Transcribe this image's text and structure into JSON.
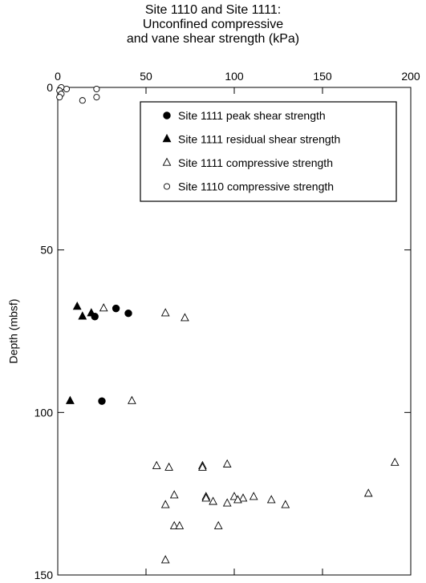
{
  "chart_data": {
    "type": "scatter",
    "title_lines": [
      "Site 1110 and Site 1111:",
      "Unconfined compressive",
      "and vane shear strength (kPa)"
    ],
    "xlabel": "",
    "ylabel": "Depth (mbsf)",
    "xlim": [
      0,
      200
    ],
    "ylim": [
      0,
      150
    ],
    "y_inverted": true,
    "x_axis_position": "top",
    "grid": false,
    "legend_placement": "top-right",
    "x_ticks": [
      0,
      50,
      100,
      150,
      200
    ],
    "y_ticks": [
      0,
      50,
      100,
      150
    ],
    "series": [
      {
        "name": "Site 1111 peak shear strength",
        "marker": "filled-circle",
        "points": [
          [
            33,
            68
          ],
          [
            40,
            69.5
          ],
          [
            21,
            70.5
          ],
          [
            25,
            96.5
          ]
        ]
      },
      {
        "name": "Site 1111 residual shear strength",
        "marker": "filled-triangle",
        "points": [
          [
            11,
            67.5
          ],
          [
            14,
            70.5
          ],
          [
            19,
            69.5
          ],
          [
            7,
            96.5
          ]
        ]
      },
      {
        "name": "Site 1111 compressive strength",
        "marker": "open-triangle",
        "points": [
          [
            26,
            68
          ],
          [
            61,
            69.5
          ],
          [
            72,
            71
          ],
          [
            42,
            96.5
          ],
          [
            56,
            116.5
          ],
          [
            63,
            117
          ],
          [
            82,
            116.5
          ],
          [
            82,
            117
          ],
          [
            96,
            116
          ],
          [
            191,
            115.5
          ],
          [
            176,
            125
          ],
          [
            66,
            125.5
          ],
          [
            84,
            126
          ],
          [
            84,
            126.5
          ],
          [
            100,
            126
          ],
          [
            105,
            126.5
          ],
          [
            111,
            126
          ],
          [
            61,
            128.5
          ],
          [
            88,
            127.5
          ],
          [
            96,
            128
          ],
          [
            102,
            127
          ],
          [
            121,
            127
          ],
          [
            129,
            128.5
          ],
          [
            66,
            135
          ],
          [
            69,
            135
          ],
          [
            91,
            135
          ],
          [
            61,
            145.5
          ]
        ]
      },
      {
        "name": "Site 1110 compressive strength",
        "marker": "open-circle",
        "points": [
          [
            2,
            0
          ],
          [
            5,
            0.5
          ],
          [
            1,
            1
          ],
          [
            22,
            0.5
          ],
          [
            2,
            2
          ],
          [
            1,
            3
          ],
          [
            22,
            3
          ],
          [
            14,
            4
          ]
        ]
      }
    ]
  }
}
